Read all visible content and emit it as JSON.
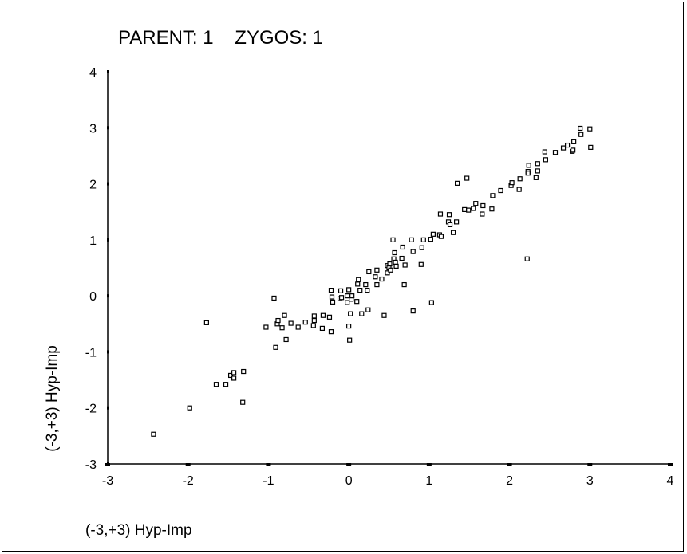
{
  "chart_data": {
    "type": "scatter",
    "title_parts": [
      "PARENT:",
      "1",
      "ZYGOS:",
      "1"
    ],
    "xlabel": "(-3,+3) Hyp-Imp",
    "ylabel": "(-3,+3) Hyp-Imp",
    "xlim": [
      -3,
      4
    ],
    "ylim": [
      -3,
      4
    ],
    "xticks": [
      -3,
      -2,
      -1,
      0,
      1,
      2,
      3,
      4
    ],
    "yticks": [
      -3,
      -2,
      -1,
      0,
      1,
      2,
      3,
      4
    ],
    "grid": false,
    "legend": "none",
    "marker_color": "#000000",
    "series": [
      {
        "x": [
          -2.43,
          -1.98,
          -1.77,
          -1.65,
          -1.53,
          -1.47,
          -1.43,
          -1.43,
          -1.32,
          -1.31,
          -1.03,
          -0.93,
          -0.91,
          -0.89,
          -0.88,
          -0.83,
          -0.8,
          -0.78,
          -0.72,
          -0.63,
          -0.54,
          -0.44,
          -0.43,
          -0.43,
          -0.33,
          -0.32,
          -0.24,
          -0.22,
          -0.22,
          -0.21,
          -0.2,
          -0.11,
          -0.1,
          -0.09,
          -0.02,
          -0.02,
          0.0,
          0.0,
          0.01,
          0.02,
          0.03,
          0.04,
          0.1,
          0.11,
          0.12,
          0.14,
          0.16,
          0.21,
          0.23,
          0.24,
          0.25,
          0.33,
          0.35,
          0.35,
          0.41,
          0.44,
          0.48,
          0.48,
          0.5,
          0.51,
          0.52,
          0.55,
          0.56,
          0.57,
          0.58,
          0.59,
          0.66,
          0.67,
          0.69,
          0.7,
          0.78,
          0.8,
          0.8,
          0.9,
          0.91,
          0.93,
          1.02,
          1.03,
          1.05,
          1.13,
          1.14,
          1.15,
          1.24,
          1.25,
          1.26,
          1.3,
          1.34,
          1.35,
          1.44,
          1.47,
          1.49,
          1.55,
          1.58,
          1.66,
          1.67,
          1.78,
          1.79,
          1.89,
          2.02,
          2.03,
          2.12,
          2.13,
          2.22,
          2.23,
          2.23,
          2.24,
          2.33,
          2.35,
          2.35,
          2.44,
          2.45,
          2.57,
          2.67,
          2.72,
          2.78,
          2.79,
          2.8,
          2.88,
          2.89,
          3.0,
          3.01
        ],
        "y": [
          -2.47,
          -2.0,
          -0.48,
          -1.58,
          -1.58,
          -1.42,
          -1.47,
          -1.37,
          -1.9,
          -1.35,
          -0.56,
          -0.04,
          -0.92,
          -0.5,
          -0.44,
          -0.57,
          -0.35,
          -0.78,
          -0.49,
          -0.56,
          -0.47,
          -0.53,
          -0.36,
          -0.44,
          -0.58,
          -0.35,
          -0.38,
          -0.64,
          0.1,
          -0.02,
          -0.11,
          -0.05,
          0.09,
          -0.03,
          0.0,
          -0.12,
          0.11,
          -0.54,
          -0.79,
          -0.32,
          -0.06,
          0.0,
          -0.1,
          0.21,
          0.29,
          0.1,
          -0.32,
          0.2,
          0.1,
          -0.25,
          0.43,
          0.34,
          0.2,
          0.46,
          0.3,
          -0.35,
          0.41,
          0.54,
          0.5,
          0.57,
          0.46,
          1.0,
          0.66,
          0.77,
          0.6,
          0.53,
          0.67,
          0.87,
          0.2,
          0.55,
          1.0,
          0.79,
          -0.27,
          0.56,
          0.86,
          1.0,
          1.01,
          -0.12,
          1.1,
          1.09,
          1.46,
          1.06,
          1.32,
          1.45,
          1.27,
          1.13,
          1.32,
          2.01,
          1.54,
          2.1,
          1.53,
          1.56,
          1.65,
          1.46,
          1.61,
          1.55,
          1.79,
          1.88,
          1.97,
          2.02,
          1.9,
          2.09,
          0.66,
          2.22,
          2.19,
          2.33,
          2.11,
          2.23,
          2.36,
          2.57,
          2.43,
          2.56,
          2.64,
          2.69,
          2.58,
          2.6,
          2.75,
          2.99,
          2.88,
          2.98,
          2.65
        ]
      }
    ]
  }
}
